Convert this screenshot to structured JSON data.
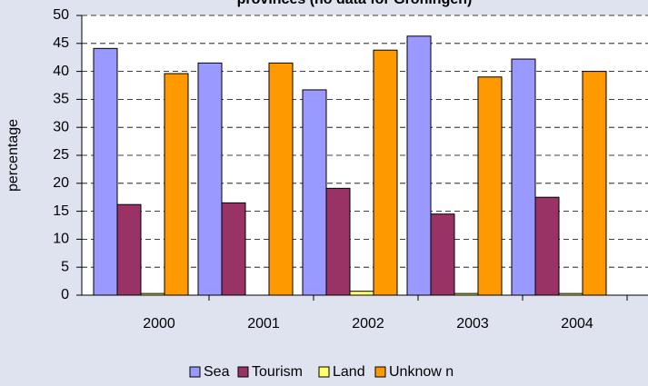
{
  "chart_data": {
    "type": "bar",
    "title": "provinces (no data for Groningen)",
    "y_label": "percentage",
    "categories": [
      "2000",
      "2001",
      "2002",
      "2003",
      "2004"
    ],
    "series": [
      {
        "name": "Sea",
        "color": "#9999ff",
        "values": [
          44.1,
          41.5,
          36.7,
          46.3,
          42.2
        ]
      },
      {
        "name": "Tourism",
        "color": "#993366",
        "values": [
          16.2,
          16.5,
          19.1,
          14.5,
          17.5
        ]
      },
      {
        "name": "Land",
        "color": "#ffff66",
        "values": [
          0.3,
          0,
          0.7,
          0.3,
          0.3
        ]
      },
      {
        "name": "Unknow n",
        "color": "#ff9900",
        "values": [
          39.6,
          41.5,
          43.8,
          39.0,
          40.0
        ]
      }
    ],
    "ylim": [
      0,
      50
    ],
    "yticks": [
      0,
      5,
      10,
      15,
      20,
      25,
      30,
      35,
      40,
      45,
      50
    ],
    "grid": true,
    "legend": "bottom"
  }
}
